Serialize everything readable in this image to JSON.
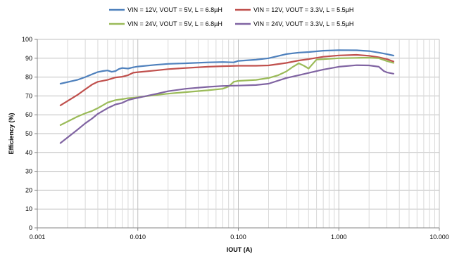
{
  "chart_data": {
    "type": "line",
    "xscale": "log",
    "xlabel": "IOUT (A)",
    "ylabel": "Efficiency (%)",
    "xlim": [
      0.001,
      10
    ],
    "ylim": [
      0,
      100
    ],
    "x_ticks": [
      0.001,
      0.01,
      0.1,
      1,
      10
    ],
    "x_tick_labels": [
      "0.001",
      "0.010",
      "0.100",
      "1.000",
      "10.000"
    ],
    "y_ticks": [
      0,
      10,
      20,
      30,
      40,
      50,
      60,
      70,
      80,
      90,
      100
    ],
    "grid": "on",
    "legend_position": "top",
    "series": [
      {
        "name": "VIN = 12V, VOUT = 5V, L = 6.8µH",
        "color": "#4f81bd",
        "x": [
          0.0017,
          0.0025,
          0.003,
          0.0035,
          0.004,
          0.0045,
          0.005,
          0.0055,
          0.006,
          0.0065,
          0.007,
          0.008,
          0.009,
          0.01,
          0.015,
          0.02,
          0.03,
          0.05,
          0.07,
          0.09,
          0.1,
          0.15,
          0.2,
          0.3,
          0.4,
          0.5,
          0.7,
          1.0,
          1.5,
          2.0,
          2.5,
          3.0,
          3.5
        ],
        "y": [
          76.5,
          78.5,
          80,
          81.5,
          82.7,
          83.2,
          83.5,
          82.8,
          83.2,
          84.3,
          84.8,
          84.5,
          85.2,
          85.6,
          86.5,
          87,
          87.3,
          87.8,
          88,
          87.8,
          88.6,
          89.2,
          90,
          92.2,
          93,
          93.3,
          94,
          94.3,
          94.2,
          93.8,
          93,
          92.2,
          91.4
        ]
      },
      {
        "name": "VIN = 12V, VOUT = 3.3V, L = 5.5µH",
        "color": "#c0504d",
        "x": [
          0.0017,
          0.0025,
          0.003,
          0.0035,
          0.004,
          0.005,
          0.006,
          0.007,
          0.008,
          0.009,
          0.01,
          0.015,
          0.02,
          0.03,
          0.05,
          0.07,
          0.1,
          0.15,
          0.2,
          0.3,
          0.4,
          0.5,
          0.7,
          1.0,
          1.5,
          2.0,
          2.5,
          3.0,
          3.5
        ],
        "y": [
          65,
          70.5,
          73.5,
          76,
          77.5,
          78.5,
          79.8,
          80.2,
          81,
          82.3,
          82.6,
          83.5,
          84.2,
          84.8,
          85.5,
          85.8,
          86,
          86,
          86.2,
          87.5,
          88.8,
          89.5,
          90.8,
          91.5,
          91.8,
          91.3,
          90.5,
          89.5,
          88.3
        ]
      },
      {
        "name": "VIN = 24V, VOUT = 5V, L = 6.8µH",
        "color": "#9bbb59",
        "x": [
          0.0017,
          0.0025,
          0.003,
          0.0035,
          0.004,
          0.005,
          0.006,
          0.007,
          0.008,
          0.009,
          0.01,
          0.015,
          0.02,
          0.03,
          0.05,
          0.07,
          0.08,
          0.09,
          0.1,
          0.15,
          0.2,
          0.25,
          0.3,
          0.35,
          0.4,
          0.45,
          0.5,
          0.6,
          0.7,
          1.0,
          1.5,
          2.0,
          2.5,
          3.0,
          3.5
        ],
        "y": [
          54.5,
          59,
          60.8,
          62,
          63.5,
          66.5,
          67.8,
          68.3,
          68.8,
          69,
          69.3,
          70.5,
          71.2,
          72,
          73,
          73.8,
          75,
          77.5,
          78,
          78.5,
          79.5,
          81,
          83,
          85.5,
          87.3,
          86,
          84.5,
          89.3,
          89.5,
          90,
          90.2,
          90.3,
          90,
          88.5,
          87.5
        ]
      },
      {
        "name": "VIN = 24V, VOUT = 3.3V, L = 5.5µH",
        "color": "#8064a2",
        "x": [
          0.0017,
          0.0025,
          0.003,
          0.0035,
          0.004,
          0.005,
          0.006,
          0.007,
          0.008,
          0.009,
          0.01,
          0.015,
          0.02,
          0.03,
          0.05,
          0.07,
          0.1,
          0.15,
          0.2,
          0.3,
          0.4,
          0.5,
          0.7,
          1.0,
          1.5,
          2.0,
          2.5,
          2.8,
          3.0,
          3.5
        ],
        "y": [
          45,
          52,
          55.5,
          58,
          60.5,
          63.5,
          65.5,
          66.3,
          67.8,
          68.5,
          69,
          71,
          72.5,
          73.8,
          74.8,
          75.3,
          75.5,
          75.8,
          76.5,
          79.5,
          81,
          82.2,
          84,
          85.5,
          86.3,
          86.2,
          85.5,
          83.2,
          82.5,
          81.8
        ]
      }
    ]
  }
}
